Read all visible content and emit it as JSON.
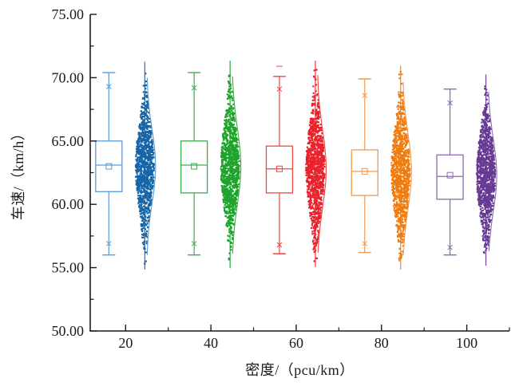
{
  "chart_data": {
    "type": "box-scatter-violin",
    "title": "",
    "xlabel": "密度/（pcu/km）",
    "ylabel": "车速/（km/h）",
    "xlim": [
      11.7,
      110
    ],
    "ylim": [
      50,
      75
    ],
    "x_major_ticks": [
      20,
      40,
      60,
      80,
      100
    ],
    "x_tick_labels": [
      "20",
      "40",
      "60",
      "80",
      "100"
    ],
    "x_minor_ticks": [
      30,
      50,
      70,
      90,
      110
    ],
    "y_major_ticks": [
      50,
      55,
      60,
      65,
      70,
      75
    ],
    "y_tick_labels": [
      "50.00",
      "55.00",
      "60.00",
      "65.00",
      "70.00",
      "75.00"
    ],
    "y_minor_ticks": [
      52.5,
      57.5,
      62.5,
      67.5,
      72.5
    ],
    "grid": "off",
    "legend": "none",
    "groups": [
      {
        "density": 20,
        "color": "#1565a8",
        "box_color": "#5b9bd5",
        "q1": 61.0,
        "median": 63.1,
        "q3": 65.0,
        "mean": 63.0,
        "whisker_low": 56.0,
        "whisker_high": 70.4,
        "p1": 56.9,
        "p99": 69.3,
        "data_min": 55.3,
        "data_max": 70.8,
        "sd": 2.5,
        "n": 1100,
        "max_dash": null
      },
      {
        "density": 40,
        "color": "#1ea32b",
        "box_color": "#3dae49",
        "q1": 60.9,
        "median": 63.1,
        "q3": 65.0,
        "mean": 63.0,
        "whisker_low": 56.0,
        "whisker_high": 70.4,
        "p1": 56.9,
        "p99": 69.2,
        "data_min": 55.4,
        "data_max": 70.9,
        "sd": 2.6,
        "n": 1100,
        "max_dash": null
      },
      {
        "density": 60,
        "color": "#e8212b",
        "box_color": "#ee4545",
        "q1": 60.9,
        "median": 62.8,
        "q3": 64.6,
        "mean": 62.8,
        "whisker_low": 56.1,
        "whisker_high": 70.1,
        "p1": 56.8,
        "p99": 69.1,
        "data_min": 55.5,
        "data_max": 70.9,
        "sd": 2.6,
        "n": 1100,
        "max_dash": 70.9
      },
      {
        "density": 80,
        "color": "#ef7c0d",
        "box_color": "#f2994e",
        "q1": 60.7,
        "median": 62.6,
        "q3": 64.3,
        "mean": 62.6,
        "whisker_low": 56.2,
        "whisker_high": 69.9,
        "p1": 56.9,
        "p99": 68.6,
        "data_min": 55.3,
        "data_max": 70.5,
        "sd": 2.6,
        "n": 1100,
        "max_dash": null
      },
      {
        "density": 100,
        "color": "#663a93",
        "box_color": "#8a68b0",
        "q1": 60.4,
        "median": 62.2,
        "q3": 63.9,
        "mean": 62.3,
        "whisker_low": 56.0,
        "whisker_high": 69.1,
        "p1": 56.6,
        "p99": 68.0,
        "data_min": 55.6,
        "data_max": 69.8,
        "sd": 2.5,
        "n": 1100,
        "max_dash": null
      }
    ],
    "axis_color": "#1a1a1a"
  }
}
